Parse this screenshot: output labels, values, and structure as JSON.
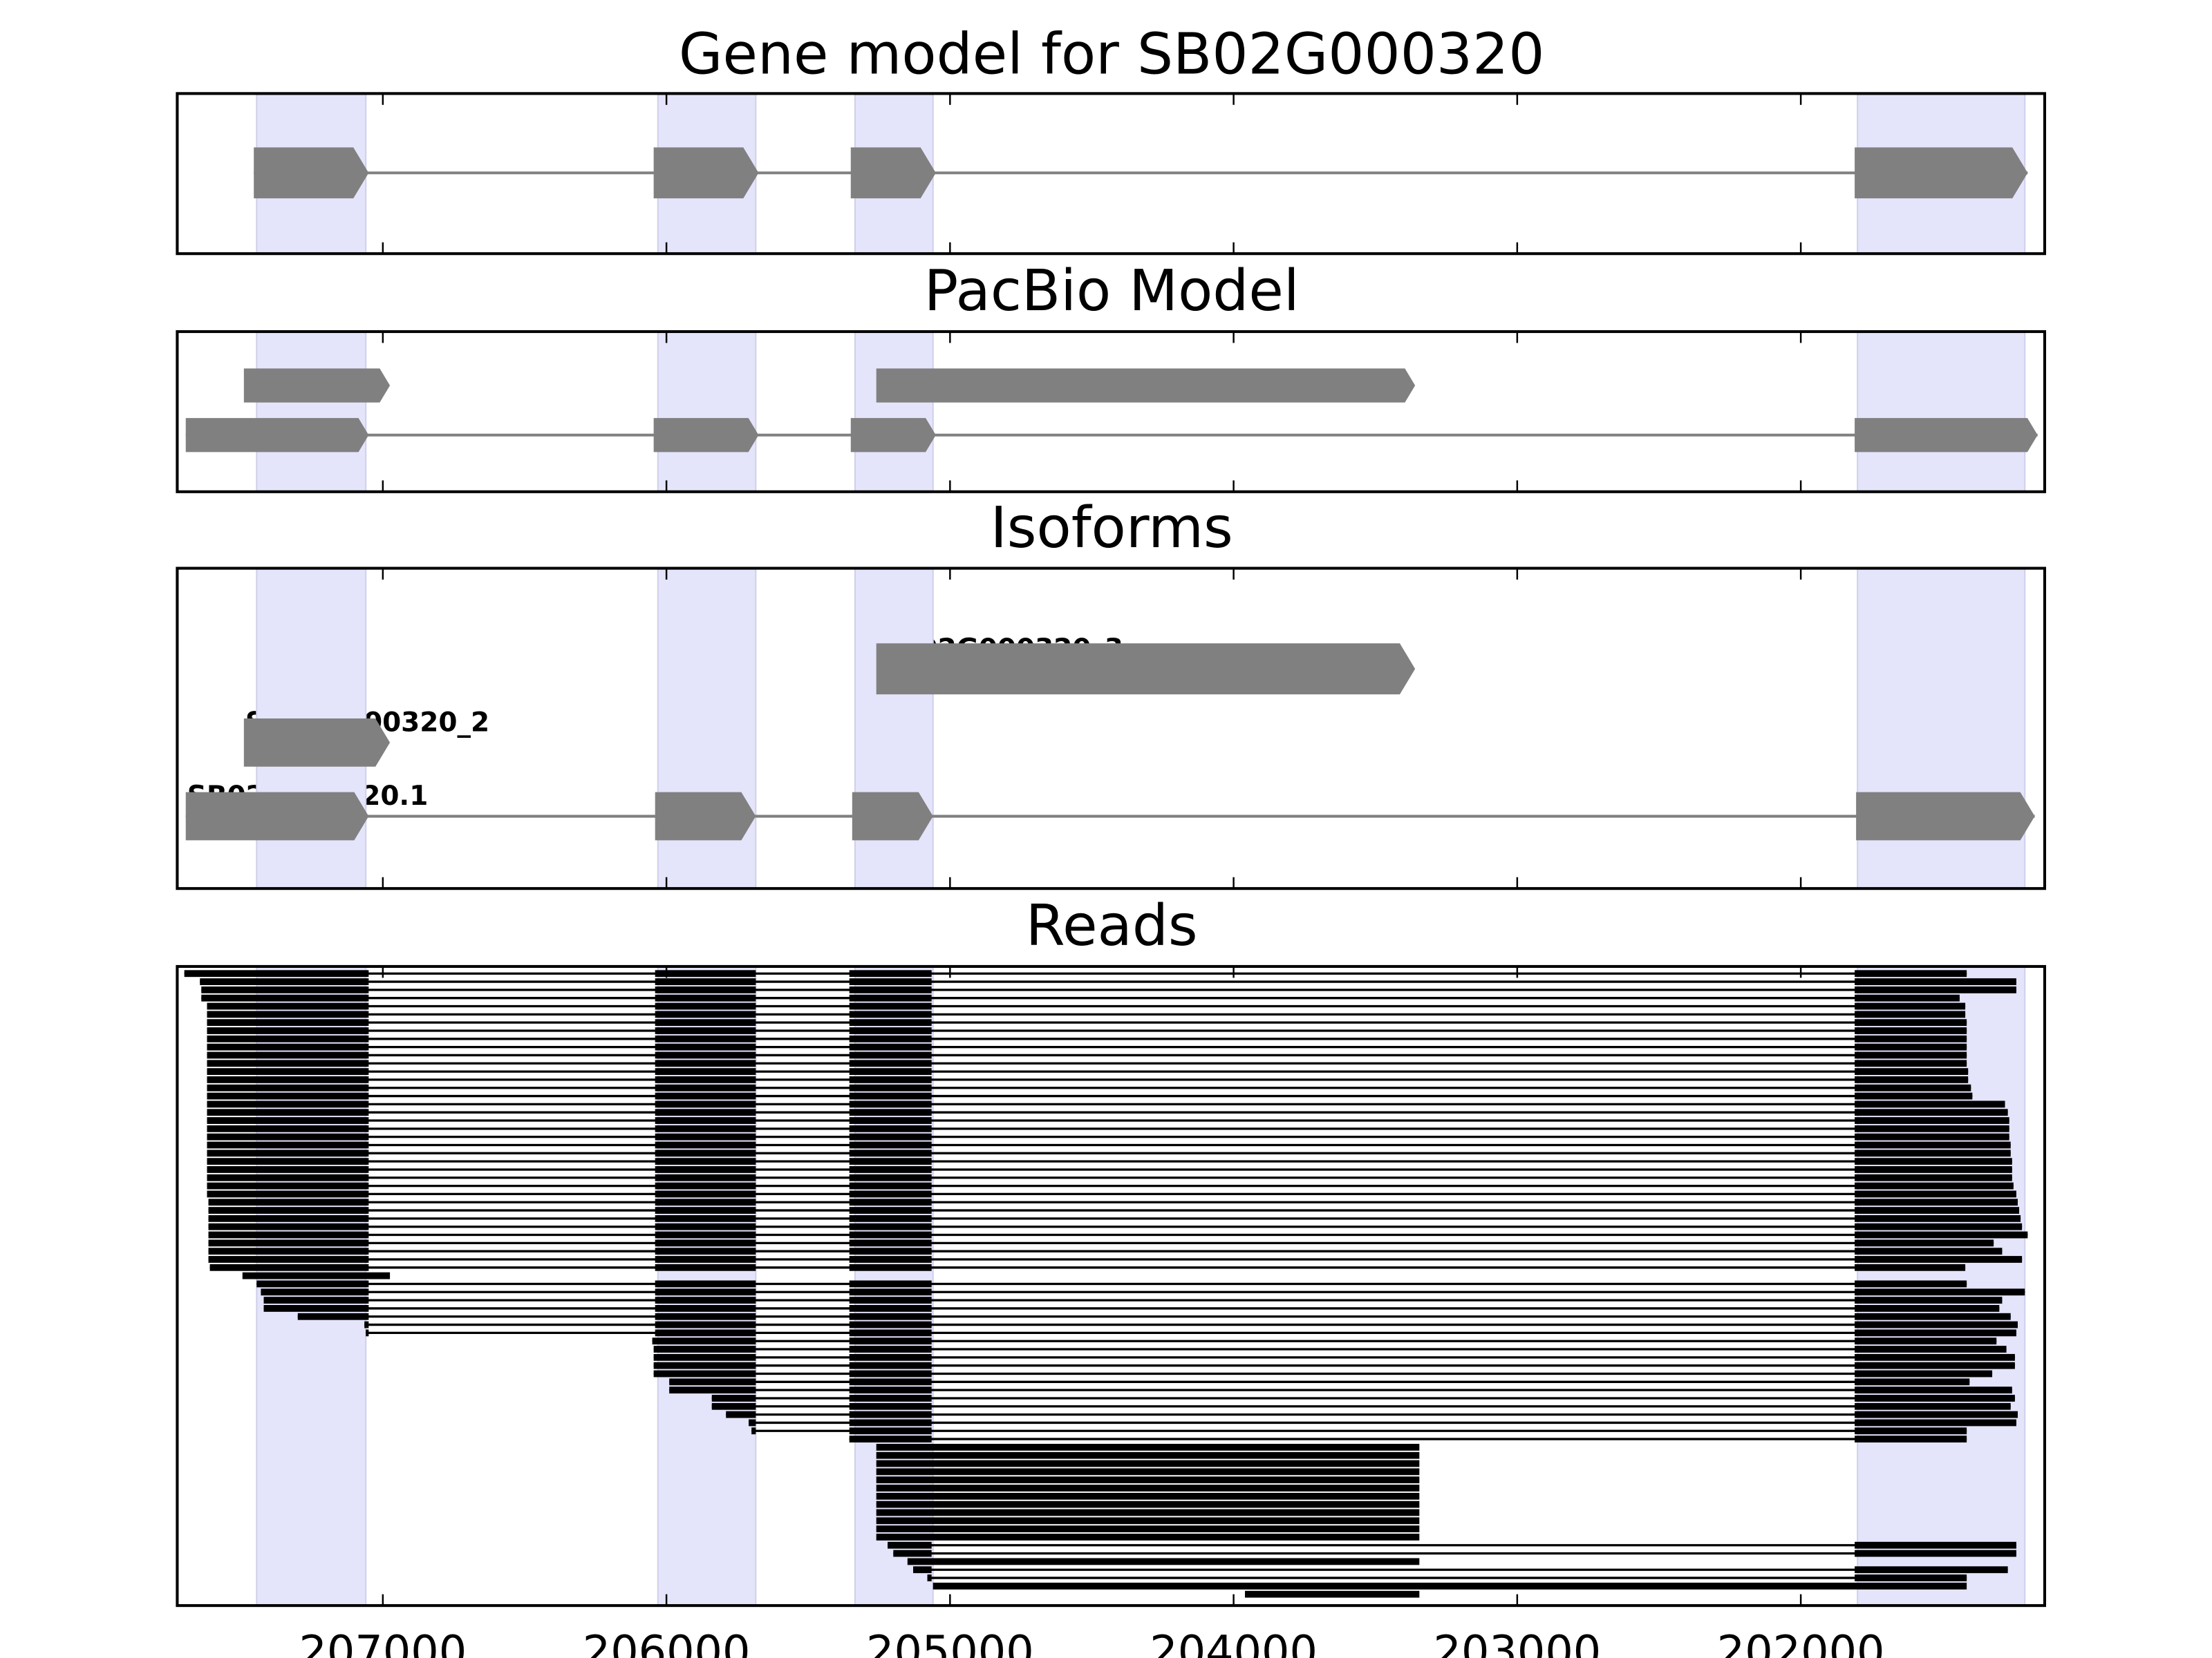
{
  "chart_data": {
    "type": "gene-track",
    "xlim": [
      207725,
      201140
    ],
    "x_reversed": true,
    "xticks": [
      207000,
      206000,
      205000,
      204000,
      203000,
      202000
    ],
    "xtick_labels": [
      "207000",
      "206000",
      "205000",
      "204000",
      "203000",
      "202000"
    ],
    "colors": {
      "feature": "#808080",
      "shade": "#e4e4fb",
      "read": "#000000"
    },
    "shaded_exons": [
      [
        207445,
        207060
      ],
      [
        206030,
        205685
      ],
      [
        205335,
        205060
      ],
      [
        201800,
        201210
      ]
    ],
    "panels": [
      {
        "title": "Gene model for SB02G000320",
        "rows": [
          {
            "exons": [
              [
                207455,
                207050
              ],
              [
                206045,
                205675
              ],
              [
                205350,
                205050
              ],
              [
                201810,
                201200
              ]
            ]
          }
        ]
      },
      {
        "title": "PacBio Model",
        "rows": [
          {
            "exons": [
              [
                207490,
                206975
              ]
            ]
          },
          {
            "exons": [
              [
                205260,
                203360
              ]
            ]
          },
          {
            "exons": [
              [
                207695,
                207050
              ],
              [
                206045,
                205675
              ],
              [
                205350,
                205050
              ],
              [
                201810,
                201165
              ]
            ]
          }
        ]
      },
      {
        "title": "Isoforms",
        "rows": [
          {
            "label": "SB02G000320_3",
            "exons": [
              [
                205260,
                203360
              ]
            ]
          },
          {
            "label": "SB02G000320_2",
            "exons": [
              [
                207490,
                206975
              ]
            ]
          },
          {
            "label": "SB02G000320.1",
            "exons": [
              [
                207695,
                207050
              ],
              [
                206040,
                205685
              ],
              [
                205345,
                205060
              ],
              [
                201805,
                201175
              ]
            ]
          }
        ]
      },
      {
        "title": "Reads",
        "read_exons": [
          [
            207800,
            207050
          ],
          [
            206040,
            205685
          ],
          [
            205355,
            205065
          ],
          [
            201810,
            201000
          ]
        ],
        "reads": [
          [
            207700,
            201415,
            "s"
          ],
          [
            207645,
            201240,
            "s"
          ],
          [
            207640,
            201240,
            "s"
          ],
          [
            207640,
            201440,
            "s"
          ],
          [
            207620,
            201420,
            "s"
          ],
          [
            207620,
            201420,
            "s"
          ],
          [
            207620,
            201415,
            "s"
          ],
          [
            207620,
            201415,
            "s"
          ],
          [
            207620,
            201415,
            "s"
          ],
          [
            207620,
            201415,
            "s"
          ],
          [
            207620,
            201415,
            "s"
          ],
          [
            207620,
            201415,
            "s"
          ],
          [
            207620,
            201410,
            "s"
          ],
          [
            207620,
            201410,
            "s"
          ],
          [
            207620,
            201400,
            "s"
          ],
          [
            207620,
            201395,
            "s"
          ],
          [
            207620,
            201280,
            "s"
          ],
          [
            207620,
            201270,
            "s"
          ],
          [
            207620,
            201265,
            "s"
          ],
          [
            207620,
            201265,
            "s"
          ],
          [
            207620,
            201265,
            "s"
          ],
          [
            207620,
            201260,
            "s"
          ],
          [
            207620,
            201260,
            "s"
          ],
          [
            207620,
            201255,
            "s"
          ],
          [
            207620,
            201255,
            "s"
          ],
          [
            207620,
            201255,
            "s"
          ],
          [
            207620,
            201250,
            "s"
          ],
          [
            207620,
            201240,
            "s"
          ],
          [
            207615,
            201235,
            "s"
          ],
          [
            207615,
            201230,
            "s"
          ],
          [
            207615,
            201225,
            "s"
          ],
          [
            207615,
            201220,
            "s"
          ],
          [
            207615,
            201200,
            "s"
          ],
          [
            207615,
            201320,
            "s"
          ],
          [
            207615,
            201290,
            "s"
          ],
          [
            207615,
            201220,
            "s"
          ],
          [
            207610,
            201420,
            "s"
          ],
          [
            207495,
            206975,
            "u"
          ],
          [
            207445,
            201415,
            "s"
          ],
          [
            207430,
            201210,
            "s"
          ],
          [
            207420,
            201290,
            "s"
          ],
          [
            207420,
            201300,
            "s"
          ],
          [
            207300,
            201260,
            "s"
          ],
          [
            207065,
            201235,
            "s"
          ],
          [
            207060,
            201240,
            "s"
          ],
          [
            206050,
            201310,
            "s"
          ],
          [
            206045,
            201275,
            "s"
          ],
          [
            206045,
            201245,
            "s"
          ],
          [
            206045,
            201245,
            "s"
          ],
          [
            206045,
            201325,
            "s"
          ],
          [
            205990,
            201405,
            "s"
          ],
          [
            205990,
            201255,
            "s"
          ],
          [
            205840,
            201245,
            "s"
          ],
          [
            205840,
            201260,
            "s"
          ],
          [
            205790,
            201235,
            "s"
          ],
          [
            205710,
            201240,
            "s"
          ],
          [
            205700,
            201415,
            "s"
          ],
          [
            205355,
            201415,
            "s"
          ],
          [
            205260,
            203345,
            "u"
          ],
          [
            205260,
            203345,
            "u"
          ],
          [
            205260,
            203345,
            "u"
          ],
          [
            205260,
            203345,
            "u"
          ],
          [
            205260,
            203345,
            "u"
          ],
          [
            205260,
            203345,
            "u"
          ],
          [
            205260,
            203345,
            "u"
          ],
          [
            205260,
            203345,
            "u"
          ],
          [
            205260,
            203345,
            "u"
          ],
          [
            205260,
            203345,
            "u"
          ],
          [
            205260,
            203345,
            "u"
          ],
          [
            205260,
            203345,
            "u"
          ],
          [
            205220,
            201240,
            "s"
          ],
          [
            205200,
            201240,
            "s"
          ],
          [
            205150,
            203345,
            "s"
          ],
          [
            205130,
            201270,
            "s"
          ],
          [
            205080,
            201415,
            "s"
          ],
          [
            205060,
            201415,
            "s"
          ],
          [
            203960,
            203345,
            "u"
          ]
        ]
      }
    ]
  }
}
